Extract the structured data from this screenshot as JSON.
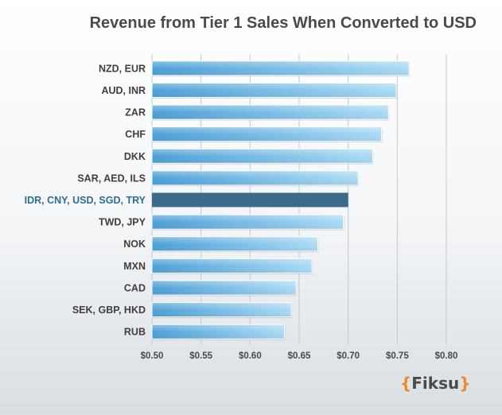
{
  "chart_data": {
    "type": "bar",
    "orientation": "horizontal",
    "title": "Revenue from Tier 1 Sales When Converted to USD",
    "xlabel": "",
    "ylabel": "",
    "xlim": [
      0.5,
      0.8
    ],
    "ticks": [
      0.5,
      0.55,
      0.6,
      0.65,
      0.7,
      0.75,
      0.8
    ],
    "tick_labels": [
      "$0.50",
      "$0.55",
      "$0.60",
      "$0.65",
      "$0.70",
      "$0.75",
      "$0.80"
    ],
    "grid": true,
    "categories": [
      "NZD, EUR",
      "AUD, INR",
      "ZAR",
      "CHF",
      "DKK",
      "SAR, AED, ILS",
      "IDR, CNY, USD, SGD, TRY",
      "TWD, JPY",
      "NOK",
      "MXN",
      "CAD",
      "SEK, GBP, HKD",
      "RUB"
    ],
    "values": [
      0.762,
      0.749,
      0.741,
      0.734,
      0.725,
      0.71,
      0.7,
      0.695,
      0.669,
      0.663,
      0.647,
      0.642,
      0.635
    ],
    "highlight_category": "IDR, CNY, USD, SGD, TRY",
    "colors": {
      "bar_start": "#4c9fd6",
      "bar_end": "#aadaf4",
      "highlight": "#3a6b8c",
      "highlight_label": "#2f6e91",
      "grid": "#c4c9ce",
      "brand_brace": "#f08a24"
    }
  },
  "brand": {
    "open": "{",
    "name": "Fiksu",
    "close": "}"
  }
}
